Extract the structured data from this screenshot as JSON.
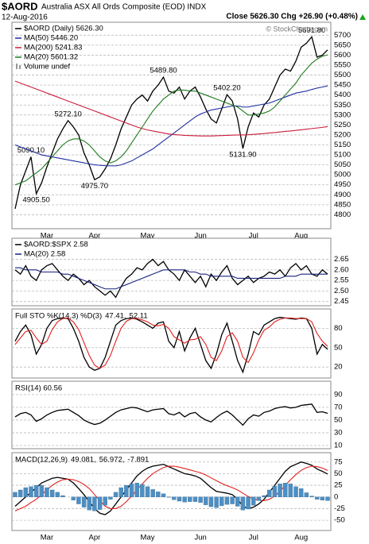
{
  "header": {
    "symbol": "$AORD",
    "name": "Australia ASX All Ords Composite (EOD) INDX",
    "date": "12-Aug-2016",
    "quote": "Close 5626.30 Chg +26.90 (+0.48%)",
    "watermark": "© StockCharts.com"
  },
  "chart_data": [
    {
      "type": "line",
      "legend": "stacked",
      "grid": true,
      "volume_label": "Volume undef",
      "categories": [
        null,
        null,
        null,
        null,
        null,
        null,
        "Mar",
        null,
        null,
        null,
        null,
        null,
        null,
        null,
        null,
        "Apr",
        null,
        null,
        null,
        null,
        null,
        null,
        null,
        null,
        null,
        "May",
        null,
        null,
        null,
        null,
        null,
        null,
        null,
        null,
        null,
        "Jun",
        null,
        null,
        null,
        null,
        null,
        null,
        null,
        null,
        null,
        "Jul",
        null,
        null,
        null,
        null,
        null,
        null,
        null,
        null,
        "Aug",
        null,
        null,
        null,
        null,
        null
      ],
      "ylim": [
        4730,
        5765
      ],
      "yticks": [
        4800,
        4850,
        4900,
        4950,
        5000,
        5050,
        5100,
        5150,
        5200,
        5250,
        5300,
        5350,
        5400,
        5450,
        5500,
        5550,
        5600,
        5650,
        5700
      ],
      "series": [
        {
          "name": "$AORD (Daily) 5626.30",
          "color": "#000000",
          "values": [
            4830,
            4950,
            5020,
            5090.1,
            4905.5,
            4960,
            5040,
            5110,
            5180,
            5230,
            5272.1,
            5240,
            5200,
            5110,
            5050,
            4975.7,
            4990,
            5030,
            5080,
            5150,
            5230,
            5290,
            5350,
            5380,
            5400,
            5370,
            5420,
            5450,
            5489.8,
            5420,
            5410,
            5440,
            5380,
            5420,
            5440,
            5390,
            5330,
            5280,
            5260,
            5330,
            5402.2,
            5370,
            5280,
            5131.9,
            5240,
            5310,
            5290,
            5350,
            5380,
            5440,
            5500,
            5530,
            5520,
            5570,
            5640,
            5660,
            5691.8,
            5590,
            5600,
            5626.3
          ],
          "value_labels": [
            null,
            null,
            null,
            "5090.10",
            "4905.50",
            null,
            null,
            null,
            null,
            null,
            "5272.10",
            null,
            null,
            null,
            null,
            "4975.70",
            null,
            null,
            null,
            null,
            null,
            null,
            null,
            null,
            null,
            null,
            null,
            null,
            "5489.80",
            null,
            null,
            null,
            null,
            null,
            null,
            null,
            null,
            null,
            null,
            null,
            "5402.20",
            null,
            null,
            "5131.90",
            null,
            null,
            null,
            null,
            null,
            null,
            null,
            null,
            null,
            null,
            null,
            null,
            "5691.80",
            null,
            null,
            null
          ]
        },
        {
          "name": "MA(50) 5446.20",
          "color": "#1f2fa0",
          "values": [
            5150,
            5140,
            5130,
            5120,
            5110,
            5100,
            5095,
            5090,
            5085,
            5080,
            5075,
            5070,
            5065,
            5060,
            5055,
            5050,
            5048,
            5046,
            5045,
            5045,
            5050,
            5060,
            5070,
            5085,
            5100,
            5115,
            5130,
            5150,
            5170,
            5190,
            5210,
            5230,
            5250,
            5270,
            5290,
            5305,
            5315,
            5325,
            5330,
            5335,
            5340,
            5345,
            5345,
            5340,
            5340,
            5345,
            5350,
            5355,
            5360,
            5370,
            5380,
            5390,
            5400,
            5410,
            5415,
            5420,
            5428,
            5435,
            5440,
            5446.2
          ]
        },
        {
          "name": "MA(200) 5241.83",
          "color": "#c81e3c",
          "values": [
            5470,
            5460,
            5450,
            5440,
            5430,
            5420,
            5410,
            5400,
            5390,
            5380,
            5370,
            5360,
            5350,
            5340,
            5330,
            5320,
            5310,
            5300,
            5290,
            5280,
            5270,
            5260,
            5250,
            5240,
            5232,
            5225,
            5220,
            5215,
            5210,
            5205,
            5202,
            5200,
            5198,
            5197,
            5196,
            5195,
            5195,
            5195,
            5196,
            5197,
            5198,
            5199,
            5200,
            5200,
            5201,
            5203,
            5205,
            5207,
            5210,
            5212,
            5215,
            5218,
            5220,
            5223,
            5226,
            5229,
            5232,
            5235,
            5238,
            5241.83
          ]
        },
        {
          "name": "MA(20) 5601.32",
          "color": "#1e7a1e",
          "values": [
            4950,
            4960,
            4970,
            4990,
            5010,
            5030,
            5060,
            5090,
            5120,
            5150,
            5170,
            5180,
            5180,
            5170,
            5150,
            5120,
            5090,
            5070,
            5060,
            5070,
            5090,
            5120,
            5160,
            5200,
            5240,
            5280,
            5320,
            5350,
            5380,
            5400,
            5420,
            5425,
            5425,
            5420,
            5420,
            5410,
            5400,
            5390,
            5380,
            5370,
            5360,
            5350,
            5340,
            5320,
            5300,
            5300,
            5305,
            5310,
            5320,
            5340,
            5370,
            5400,
            5430,
            5460,
            5500,
            5530,
            5560,
            5580,
            5595,
            5601.32
          ]
        }
      ]
    },
    {
      "type": "line",
      "legend": "stacked",
      "grid": true,
      "ylim": [
        2.43,
        2.75
      ],
      "yticks": [
        2.45,
        {
          "value": 2.5,
          "label": "2.50"
        },
        2.55,
        {
          "value": 2.6,
          "label": "2.60"
        },
        2.65
      ],
      "series": [
        {
          "name": "$AORD:$SPX 2.58",
          "color": "#000000",
          "values": [
            2.6,
            2.58,
            2.62,
            2.57,
            2.55,
            2.6,
            2.62,
            2.63,
            2.6,
            2.57,
            2.55,
            2.58,
            2.56,
            2.53,
            2.55,
            2.52,
            2.5,
            2.48,
            2.5,
            2.47,
            2.52,
            2.56,
            2.58,
            2.61,
            2.6,
            2.63,
            2.65,
            2.62,
            2.64,
            2.6,
            2.58,
            2.55,
            2.6,
            2.57,
            2.54,
            2.57,
            2.52,
            2.58,
            2.55,
            2.59,
            2.62,
            2.56,
            2.53,
            2.55,
            2.57,
            2.54,
            2.56,
            2.57,
            2.59,
            2.58,
            2.6,
            2.57,
            2.61,
            2.63,
            2.6,
            2.62,
            2.58,
            2.57,
            2.6,
            2.58
          ]
        },
        {
          "name": "MA(20) 2.58",
          "color": "#1a237e",
          "values": [
            2.61,
            2.61,
            2.6,
            2.6,
            2.6,
            2.59,
            2.59,
            2.59,
            2.59,
            2.58,
            2.58,
            2.57,
            2.56,
            2.55,
            2.54,
            2.53,
            2.52,
            2.51,
            2.51,
            2.51,
            2.52,
            2.53,
            2.54,
            2.55,
            2.56,
            2.57,
            2.58,
            2.59,
            2.6,
            2.6,
            2.6,
            2.6,
            2.6,
            2.59,
            2.59,
            2.58,
            2.58,
            2.57,
            2.57,
            2.57,
            2.57,
            2.57,
            2.56,
            2.56,
            2.56,
            2.56,
            2.56,
            2.56,
            2.56,
            2.56,
            2.56,
            2.57,
            2.57,
            2.57,
            2.58,
            2.58,
            2.58,
            2.58,
            2.58,
            2.58
          ]
        }
      ]
    },
    {
      "type": "line",
      "legend": "inline",
      "grid": true,
      "title": "Full STO %K(14,3) %D(3)",
      "ylim": [
        3,
        110
      ],
      "yticks": [
        20,
        50,
        80
      ],
      "series": [
        {
          "name": "47.41,",
          "color": "#000000",
          "values": [
            60,
            75,
            85,
            70,
            40,
            55,
            80,
            92,
            95,
            96,
            95,
            80,
            60,
            35,
            20,
            15,
            18,
            35,
            60,
            85,
            92,
            95,
            96,
            94,
            90,
            85,
            80,
            88,
            90,
            60,
            50,
            75,
            45,
            65,
            80,
            55,
            30,
            18,
            40,
            70,
            88,
            60,
            30,
            12,
            40,
            75,
            70,
            85,
            90,
            95,
            97,
            96,
            95,
            94,
            96,
            95,
            80,
            40,
            55,
            47.41
          ]
        },
        {
          "name": "52.11",
          "color": "#e02020",
          "values": [
            55,
            65,
            75,
            77,
            65,
            55,
            60,
            78,
            90,
            95,
            96,
            90,
            78,
            58,
            38,
            23,
            18,
            23,
            38,
            60,
            80,
            91,
            95,
            95,
            93,
            90,
            85,
            84,
            86,
            80,
            67,
            62,
            57,
            62,
            63,
            67,
            55,
            35,
            30,
            45,
            67,
            73,
            60,
            35,
            27,
            42,
            62,
            77,
            82,
            90,
            94,
            96,
            96,
            95,
            95,
            95,
            90,
            72,
            60,
            52.11
          ]
        }
      ]
    },
    {
      "type": "line",
      "legend": "inline",
      "grid": true,
      "ylim": [
        5,
        111
      ],
      "yticks": [
        10,
        30,
        50,
        70,
        90
      ],
      "series": [
        {
          "name": "RSI(14) 60.56",
          "color": "#000000",
          "values": [
            55,
            60,
            62,
            58,
            48,
            52,
            58,
            62,
            65,
            66,
            67,
            62,
            57,
            50,
            46,
            43,
            45,
            50,
            56,
            62,
            66,
            68,
            70,
            69,
            66,
            63,
            66,
            67,
            68,
            60,
            58,
            62,
            55,
            60,
            62,
            55,
            50,
            47,
            54,
            60,
            64,
            58,
            50,
            42,
            52,
            58,
            56,
            62,
            64,
            68,
            70,
            71,
            69,
            70,
            73,
            74,
            75,
            62,
            63,
            60.56
          ]
        }
      ]
    },
    {
      "type": "line",
      "legend": "inline",
      "grid": true,
      "title": "MACD(12,26,9)",
      "categories": [
        null,
        null,
        null,
        null,
        null,
        null,
        "Mar",
        null,
        null,
        null,
        null,
        null,
        null,
        null,
        null,
        "Apr",
        null,
        null,
        null,
        null,
        null,
        null,
        null,
        null,
        null,
        "May",
        null,
        null,
        null,
        null,
        null,
        null,
        null,
        null,
        null,
        "Jun",
        null,
        null,
        null,
        null,
        null,
        null,
        null,
        null,
        null,
        "Jul",
        null,
        null,
        null,
        null,
        null,
        null,
        null,
        null,
        "Aug",
        null,
        null,
        null,
        null,
        null
      ],
      "ylim": [
        -72,
        95
      ],
      "yticks": [
        -50,
        -25,
        0,
        25,
        50,
        75
      ],
      "series": [
        {
          "name": "49.081,",
          "color": "#000000",
          "values": [
            -20,
            -10,
            0,
            10,
            20,
            30,
            35,
            40,
            42,
            40,
            38,
            30,
            18,
            5,
            -10,
            -25,
            -35,
            -38,
            -30,
            -15,
            0,
            15,
            30,
            45,
            55,
            62,
            66,
            68,
            70,
            65,
            60,
            55,
            50,
            48,
            45,
            40,
            30,
            20,
            12,
            10,
            8,
            5,
            -5,
            -20,
            -25,
            -22,
            -15,
            -5,
            10,
            25,
            40,
            55,
            65,
            70,
            75,
            72,
            68,
            60,
            55,
            49.081
          ]
        },
        {
          "name": "56.972,",
          "color": "#e02020",
          "values": [
            -30,
            -25,
            -20,
            -12,
            -5,
            5,
            15,
            25,
            32,
            37,
            38,
            37,
            33,
            27,
            18,
            5,
            -8,
            -20,
            -25,
            -25,
            -20,
            -10,
            2,
            15,
            28,
            40,
            50,
            57,
            63,
            66,
            66,
            64,
            61,
            58,
            55,
            52,
            47,
            41,
            35,
            29,
            24,
            20,
            15,
            8,
            1,
            -4,
            -7,
            -8,
            -5,
            2,
            12,
            25,
            37,
            48,
            57,
            63,
            66,
            65,
            62,
            56.972
          ]
        },
        {
          "name": "-7.891",
          "color": "#4d8fc4",
          "style": "bar",
          "values": [
            10,
            15,
            20,
            22,
            25,
            25,
            20,
            15,
            10,
            3,
            0,
            -7,
            -15,
            -22,
            -28,
            -30,
            -27,
            -18,
            -5,
            10,
            20,
            25,
            28,
            30,
            27,
            22,
            16,
            11,
            7,
            -1,
            -6,
            -9,
            -11,
            -10,
            -10,
            -12,
            -17,
            -21,
            -23,
            -19,
            -16,
            -15,
            -20,
            -28,
            -26,
            -18,
            -8,
            3,
            15,
            23,
            28,
            30,
            28,
            22,
            18,
            9,
            2,
            -5,
            -7,
            -7.891
          ]
        }
      ]
    }
  ]
}
